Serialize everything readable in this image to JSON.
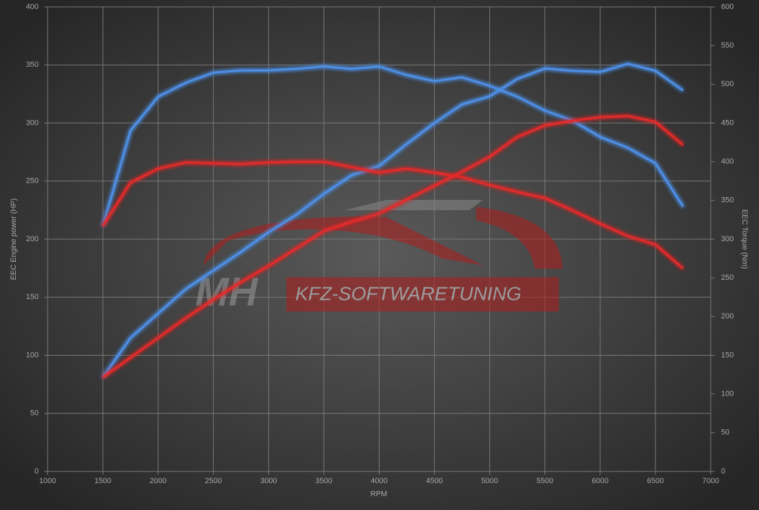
{
  "chart_data": {
    "type": "line",
    "ylabel": "EEC Engine power (HP)",
    "y2label": "EEC Torque (Nm)",
    "xlabel": "RPM",
    "watermark": {
      "logo": "MH",
      "text": "KFZ-SOFTWARETUNING"
    },
    "x": [
      1500,
      1750,
      2000,
      2250,
      2500,
      2750,
      3000,
      3250,
      3500,
      3750,
      4000,
      4250,
      4500,
      4750,
      5000,
      5250,
      5500,
      5750,
      6000,
      6250,
      6500,
      6750
    ],
    "series": [
      {
        "color": "#4d8fe6",
        "axis": "y2",
        "values": [
          317,
          440,
          484,
          502,
          515,
          518,
          518,
          520,
          523,
          520,
          523,
          512,
          504,
          509,
          498,
          484,
          466,
          453,
          432,
          418,
          398,
          342
        ]
      },
      {
        "color": "#4d8fe6",
        "values": [
          81,
          115,
          136,
          157,
          173,
          189,
          206,
          221,
          239,
          255,
          263,
          282,
          300,
          316,
          323,
          338,
          347,
          345,
          344,
          351,
          345,
          328
        ]
      },
      {
        "color": "#e32a2a",
        "axis": "y2",
        "values": [
          317,
          373,
          391,
          399,
          398,
          397,
          399,
          400,
          400,
          393,
          386,
          391,
          386,
          380,
          370,
          361,
          353,
          337,
          320,
          304,
          293,
          262
        ]
      },
      {
        "color": "#e32a2a",
        "values": [
          81,
          98,
          115,
          132,
          148,
          163,
          177,
          192,
          207,
          215,
          222,
          234,
          246,
          258,
          271,
          288,
          298,
          302,
          305,
          306,
          301,
          281
        ]
      }
    ],
    "xlim": [
      1000,
      7000
    ],
    "xticks": [
      1000,
      1500,
      2000,
      2500,
      3000,
      3500,
      4000,
      4500,
      5000,
      5500,
      6000,
      6500,
      7000
    ],
    "ylim": [
      0,
      400
    ],
    "yticks": [
      0,
      50,
      100,
      150,
      200,
      250,
      300,
      350,
      400
    ],
    "y2lim": [
      0,
      600
    ],
    "y2ticks": [
      0,
      50,
      100,
      150,
      200,
      250,
      300,
      350,
      400,
      450,
      500,
      550,
      600
    ],
    "grid": true
  }
}
